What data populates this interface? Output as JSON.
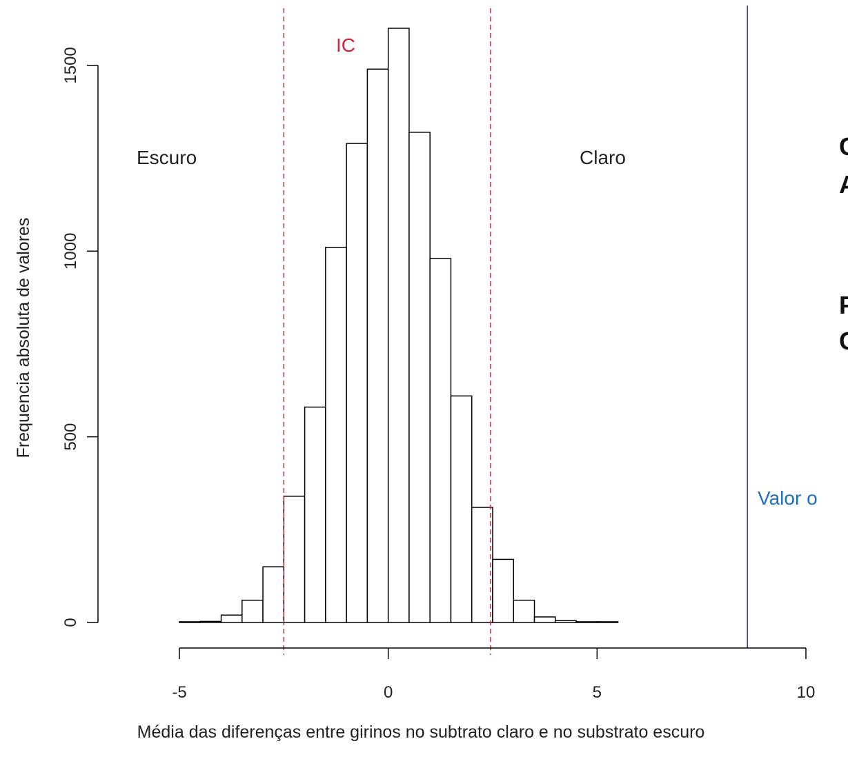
{
  "chart_data": {
    "type": "bar",
    "title": "",
    "xlabel": "Média das diferenças entre girinos no subtrato claro e no substrato escuro",
    "ylabel": "Frequencia absoluta de valores",
    "bin_start": -5,
    "bin_width": 0.5,
    "values": [
      2,
      3,
      20,
      60,
      150,
      340,
      580,
      1010,
      1290,
      1490,
      1600,
      1320,
      980,
      610,
      310,
      170,
      60,
      15,
      5,
      2,
      2
    ],
    "xlim": [
      -5,
      10
    ],
    "ylim": [
      0,
      1600
    ],
    "xticks": [
      "-5",
      "0",
      "5",
      "10"
    ],
    "yticks": [
      "0",
      "500",
      "1000",
      "1500"
    ],
    "ic": {
      "label": "IC",
      "lower": -2.5,
      "upper": 2.45,
      "color": "#d0243a"
    },
    "observed_value": {
      "x": 8.6,
      "color": "#3a3aa8"
    },
    "region_labels": {
      "left": "Escuro",
      "right": "Claro"
    },
    "grid": false
  },
  "side_text": {
    "line1": "C",
    "line2": "A",
    "line3": "F",
    "line4": "C",
    "observed_label": "Valor o",
    "observed_label_color": "#1f6fc0"
  }
}
